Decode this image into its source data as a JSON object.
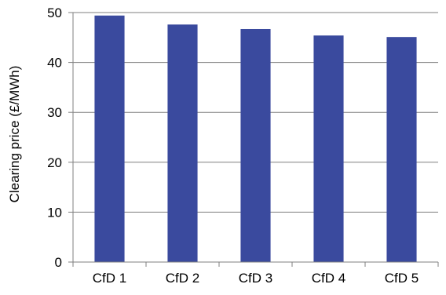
{
  "chart_data": {
    "type": "bar",
    "title": "",
    "xlabel": "",
    "ylabel": "Clearing price (£/MWh)",
    "categories": [
      "CfD 1",
      "CfD 2",
      "CfD 3",
      "CfD 4",
      "CfD 5"
    ],
    "values": [
      49.4,
      47.6,
      46.7,
      45.4,
      45.1
    ],
    "ylim": [
      0,
      50
    ],
    "yticks": [
      0,
      10,
      20,
      30,
      40,
      50
    ],
    "grid": "horizontal",
    "legend": "none",
    "bar_color": "#3a4a9e"
  }
}
